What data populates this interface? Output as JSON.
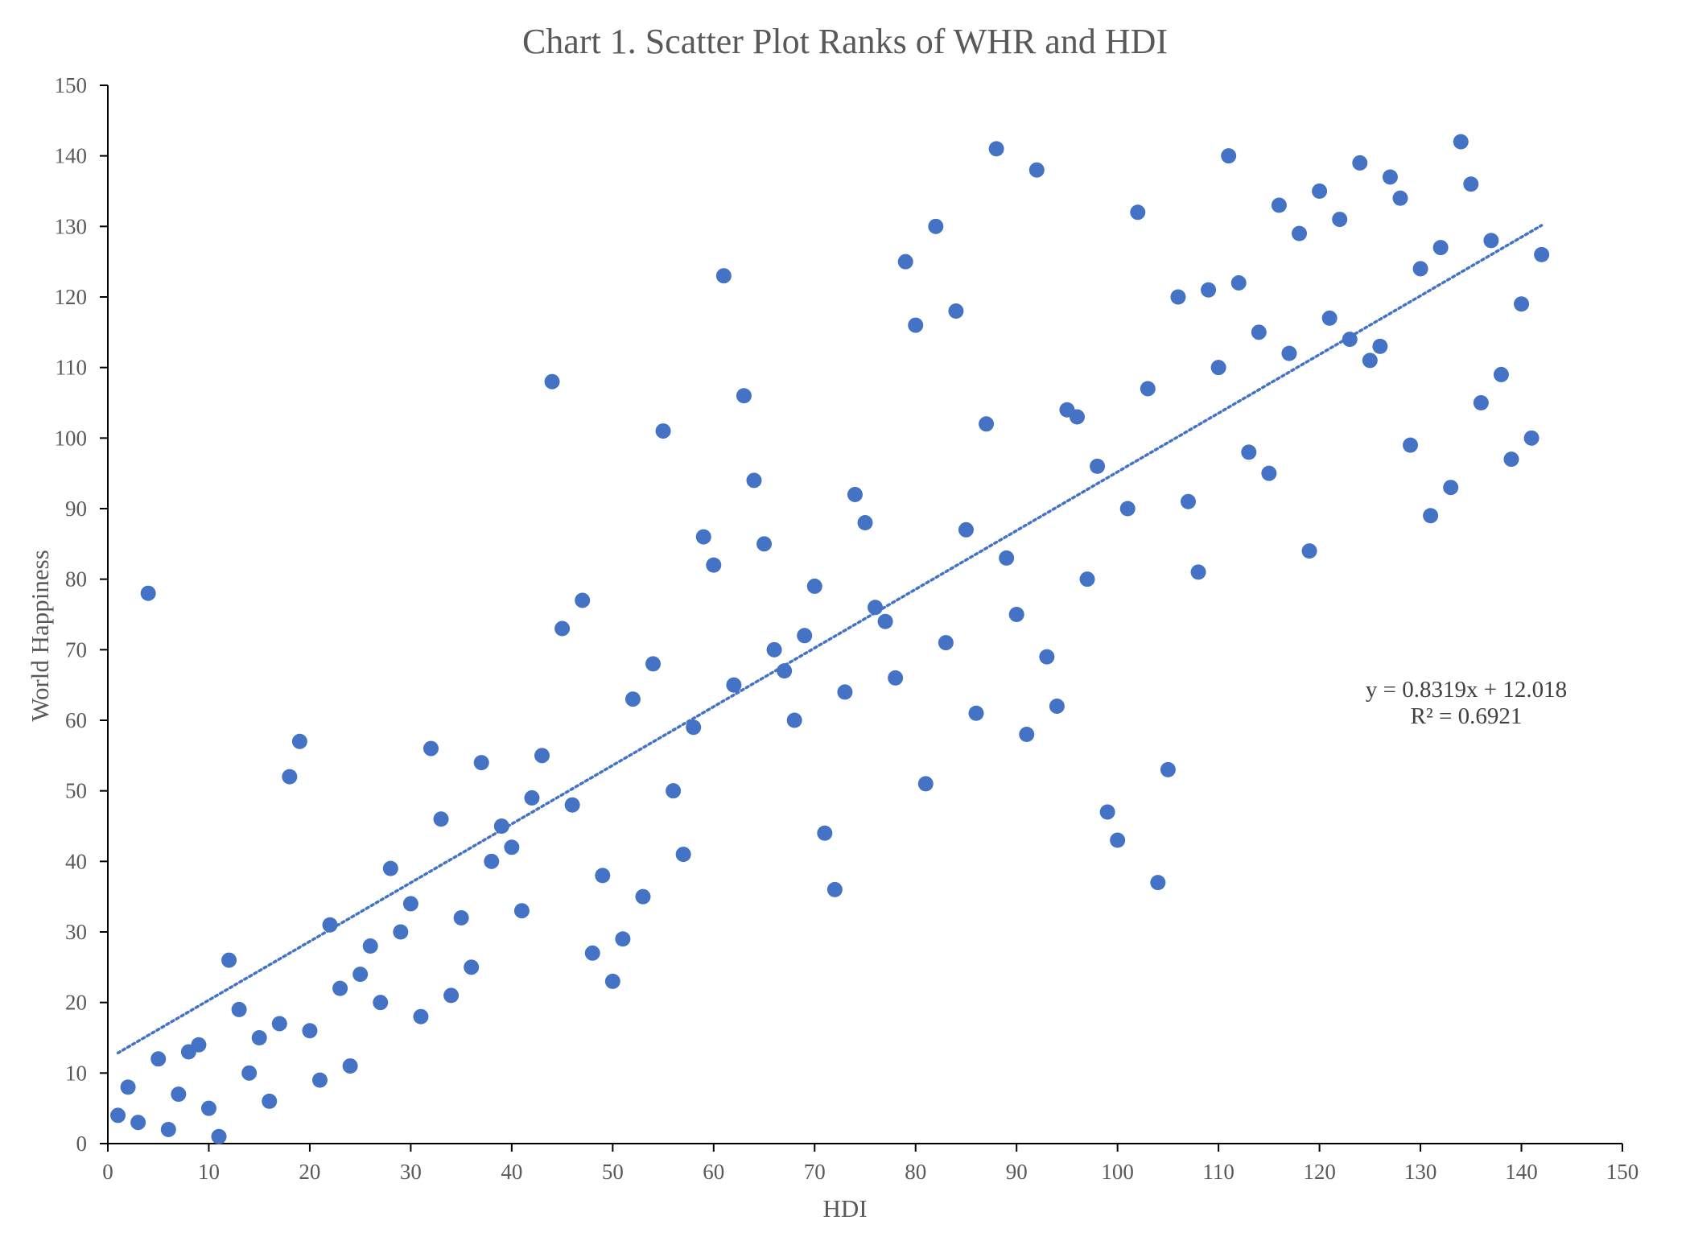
{
  "chart_data": {
    "type": "scatter",
    "title": "Chart 1.  Scatter Plot Ranks of WHR and HDI",
    "xlabel": "HDI",
    "ylabel": "World Happiness",
    "xlim": [
      0,
      150
    ],
    "ylim": [
      0,
      150
    ],
    "x_ticks": [
      "0",
      "10",
      "20",
      "30",
      "40",
      "50",
      "60",
      "70",
      "80",
      "90",
      "100",
      "110",
      "120",
      "130",
      "140",
      "150"
    ],
    "y_ticks": [
      "0",
      "10",
      "20",
      "30",
      "40",
      "50",
      "60",
      "70",
      "80",
      "90",
      "100",
      "110",
      "120",
      "130",
      "140",
      "150"
    ],
    "grid": false,
    "legend": "none",
    "marker_color": "#4472C4",
    "trendline": {
      "slope": 0.8319,
      "intercept": 12.018,
      "x_range": [
        1,
        142
      ],
      "style": "dotted",
      "color": "#4472C4"
    },
    "annotation": {
      "equation": "y = 0.8319x + 12.018",
      "r_squared": "R² = 0.6921"
    },
    "points": [
      [
        1,
        4
      ],
      [
        2,
        8
      ],
      [
        3,
        3
      ],
      [
        4,
        78
      ],
      [
        5,
        12
      ],
      [
        6,
        2
      ],
      [
        7,
        7
      ],
      [
        8,
        13
      ],
      [
        9,
        14
      ],
      [
        10,
        5
      ],
      [
        11,
        1
      ],
      [
        12,
        26
      ],
      [
        13,
        19
      ],
      [
        14,
        10
      ],
      [
        15,
        15
      ],
      [
        16,
        6
      ],
      [
        17,
        17
      ],
      [
        18,
        52
      ],
      [
        19,
        57
      ],
      [
        20,
        16
      ],
      [
        21,
        9
      ],
      [
        22,
        31
      ],
      [
        23,
        22
      ],
      [
        24,
        11
      ],
      [
        25,
        24
      ],
      [
        26,
        28
      ],
      [
        27,
        20
      ],
      [
        28,
        39
      ],
      [
        29,
        30
      ],
      [
        30,
        34
      ],
      [
        31,
        18
      ],
      [
        32,
        56
      ],
      [
        33,
        46
      ],
      [
        34,
        21
      ],
      [
        35,
        32
      ],
      [
        36,
        25
      ],
      [
        37,
        54
      ],
      [
        38,
        40
      ],
      [
        39,
        45
      ],
      [
        40,
        42
      ],
      [
        41,
        33
      ],
      [
        42,
        49
      ],
      [
        43,
        55
      ],
      [
        44,
        108
      ],
      [
        45,
        73
      ],
      [
        46,
        48
      ],
      [
        47,
        77
      ],
      [
        48,
        27
      ],
      [
        49,
        38
      ],
      [
        50,
        23
      ],
      [
        51,
        29
      ],
      [
        52,
        63
      ],
      [
        53,
        35
      ],
      [
        54,
        68
      ],
      [
        55,
        101
      ],
      [
        56,
        50
      ],
      [
        57,
        41
      ],
      [
        58,
        59
      ],
      [
        59,
        86
      ],
      [
        60,
        82
      ],
      [
        61,
        123
      ],
      [
        62,
        65
      ],
      [
        63,
        106
      ],
      [
        64,
        94
      ],
      [
        65,
        85
      ],
      [
        66,
        70
      ],
      [
        67,
        67
      ],
      [
        68,
        60
      ],
      [
        69,
        72
      ],
      [
        70,
        79
      ],
      [
        71,
        44
      ],
      [
        72,
        36
      ],
      [
        73,
        64
      ],
      [
        74,
        92
      ],
      [
        75,
        88
      ],
      [
        76,
        76
      ],
      [
        77,
        74
      ],
      [
        78,
        66
      ],
      [
        79,
        125
      ],
      [
        80,
        116
      ],
      [
        81,
        51
      ],
      [
        82,
        130
      ],
      [
        83,
        71
      ],
      [
        84,
        118
      ],
      [
        85,
        87
      ],
      [
        86,
        61
      ],
      [
        87,
        102
      ],
      [
        88,
        141
      ],
      [
        89,
        83
      ],
      [
        90,
        75
      ],
      [
        91,
        58
      ],
      [
        92,
        138
      ],
      [
        93,
        69
      ],
      [
        94,
        62
      ],
      [
        95,
        104
      ],
      [
        96,
        103
      ],
      [
        97,
        80
      ],
      [
        98,
        96
      ],
      [
        99,
        47
      ],
      [
        100,
        43
      ],
      [
        101,
        90
      ],
      [
        102,
        132
      ],
      [
        103,
        107
      ],
      [
        104,
        37
      ],
      [
        105,
        53
      ],
      [
        106,
        120
      ],
      [
        107,
        91
      ],
      [
        108,
        81
      ],
      [
        109,
        121
      ],
      [
        110,
        110
      ],
      [
        111,
        140
      ],
      [
        112,
        122
      ],
      [
        113,
        98
      ],
      [
        114,
        115
      ],
      [
        115,
        95
      ],
      [
        116,
        133
      ],
      [
        117,
        112
      ],
      [
        118,
        129
      ],
      [
        119,
        84
      ],
      [
        120,
        135
      ],
      [
        121,
        117
      ],
      [
        122,
        131
      ],
      [
        123,
        114
      ],
      [
        124,
        139
      ],
      [
        125,
        111
      ],
      [
        126,
        113
      ],
      [
        127,
        137
      ],
      [
        128,
        134
      ],
      [
        129,
        99
      ],
      [
        130,
        124
      ],
      [
        131,
        89
      ],
      [
        132,
        127
      ],
      [
        133,
        93
      ],
      [
        134,
        142
      ],
      [
        135,
        136
      ],
      [
        136,
        105
      ],
      [
        137,
        128
      ],
      [
        138,
        109
      ],
      [
        139,
        97
      ],
      [
        140,
        119
      ],
      [
        141,
        100
      ],
      [
        142,
        126
      ]
    ]
  }
}
